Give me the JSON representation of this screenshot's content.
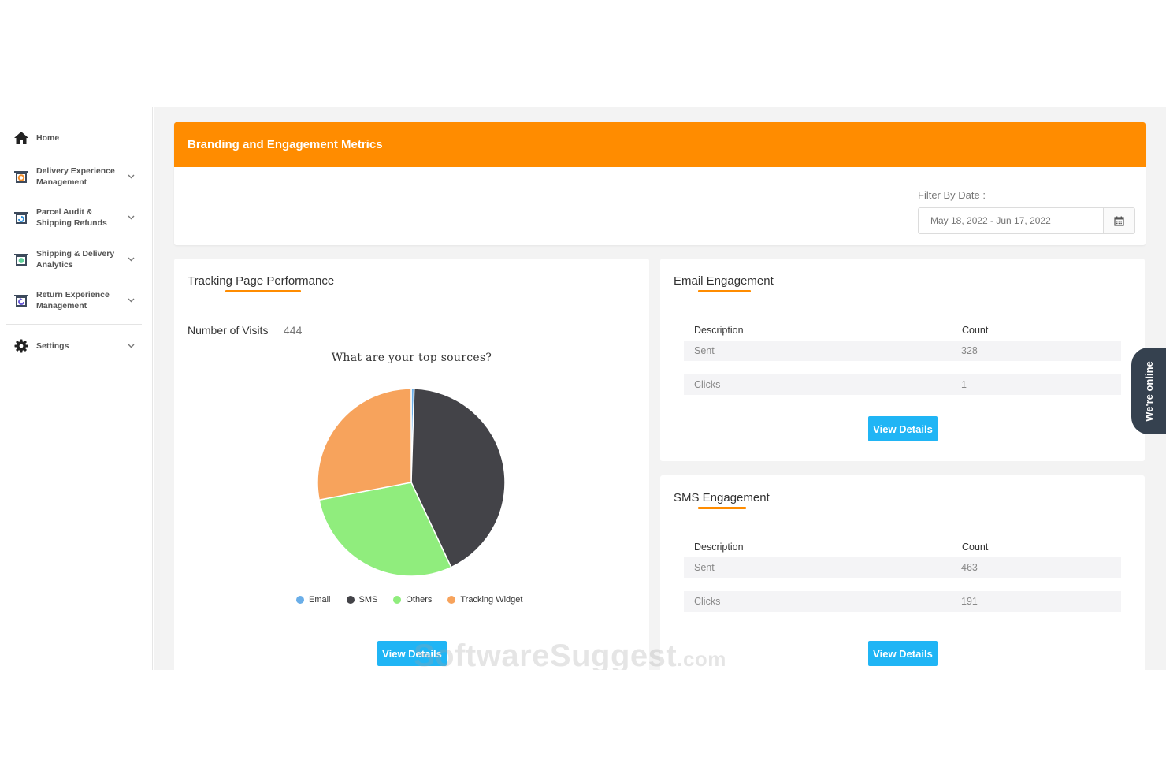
{
  "sidebar": {
    "items": [
      {
        "label": "Home",
        "icon": "home-icon"
      },
      {
        "label": "Delivery Experience Management",
        "icon": "delivery-icon"
      },
      {
        "label": "Parcel Audit & Shipping Refunds",
        "icon": "audit-icon"
      },
      {
        "label": "Shipping & Delivery Analytics",
        "icon": "analytics-icon"
      },
      {
        "label": "Return Experience Management",
        "icon": "return-icon"
      },
      {
        "label": "Settings",
        "icon": "gear-icon"
      }
    ]
  },
  "header": {
    "title": "Branding and Engagement Metrics",
    "filter_label": "Filter By Date :",
    "date_range": "May 18, 2022 - Jun 17, 2022"
  },
  "tracking": {
    "title": "Tracking Page Performance",
    "visits_label": "Number of Visits",
    "visits_count": "444",
    "question": "What are your top sources?",
    "button": "View Details"
  },
  "chart_data": {
    "type": "pie",
    "title": "What are your top sources?",
    "legend_position": "bottom",
    "slices": [
      {
        "name": "Email",
        "value": 0.5,
        "color": "#6aaee8"
      },
      {
        "name": "SMS",
        "value": 42.5,
        "color": "#434348"
      },
      {
        "name": "Others",
        "value": 29,
        "color": "#90ed7d"
      },
      {
        "name": "Tracking Widget",
        "value": 28,
        "color": "#f7a35c"
      }
    ]
  },
  "email": {
    "title": "Email Engagement",
    "col_description": "Description",
    "col_count": "Count",
    "rows": [
      {
        "description": "Sent",
        "count": "328"
      },
      {
        "description": "Clicks",
        "count": "1"
      }
    ],
    "button": "View Details"
  },
  "sms": {
    "title": "SMS Engagement",
    "col_description": "Description",
    "col_count": "Count",
    "rows": [
      {
        "description": "Sent",
        "count": "463"
      },
      {
        "description": "Clicks",
        "count": "191"
      }
    ],
    "button": "View Details"
  },
  "chat": {
    "label": "We're online"
  },
  "watermark": {
    "text": "SoftwareSuggest",
    "suffix": ".com"
  },
  "colors": {
    "accent": "#ff8c00",
    "button": "#20b5f5"
  }
}
